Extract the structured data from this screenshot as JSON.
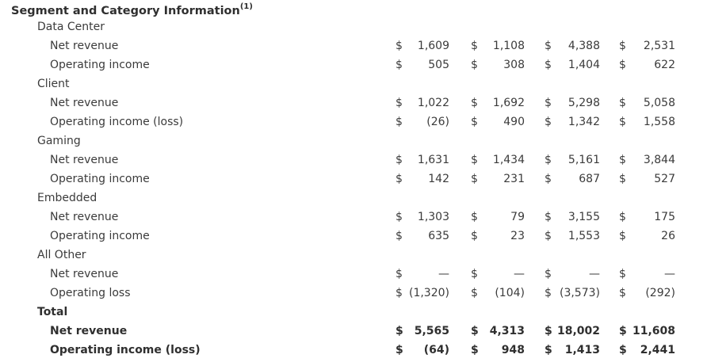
{
  "title": "Segment and Category Information",
  "title_footnote": "(1)",
  "currency": "$",
  "segments": [
    {
      "name": "Data Center",
      "rows": [
        {
          "label": "Net revenue",
          "values": [
            "1,609",
            "1,108",
            "4,388",
            "2,531"
          ]
        },
        {
          "label": "Operating income",
          "values": [
            "505",
            "308",
            "1,404",
            "622"
          ]
        }
      ]
    },
    {
      "name": "Client",
      "rows": [
        {
          "label": "Net revenue",
          "values": [
            "1,022",
            "1,692",
            "5,298",
            "5,058"
          ]
        },
        {
          "label": "Operating income (loss)",
          "values": [
            "(26)",
            "490",
            "1,342",
            "1,558"
          ]
        }
      ]
    },
    {
      "name": "Gaming",
      "rows": [
        {
          "label": "Net revenue",
          "values": [
            "1,631",
            "1,434",
            "5,161",
            "3,844"
          ]
        },
        {
          "label": "Operating income",
          "values": [
            "142",
            "231",
            "687",
            "527"
          ]
        }
      ]
    },
    {
      "name": "Embedded",
      "rows": [
        {
          "label": "Net revenue",
          "values": [
            "1,303",
            "79",
            "3,155",
            "175"
          ]
        },
        {
          "label": "Operating income",
          "values": [
            "635",
            "23",
            "1,553",
            "26"
          ]
        }
      ]
    },
    {
      "name": "All Other",
      "rows": [
        {
          "label": "Net revenue",
          "values": [
            "—",
            "—",
            "—",
            "—"
          ]
        },
        {
          "label": "Operating loss",
          "values": [
            "(1,320)",
            "(104)",
            "(3,573)",
            "(292)"
          ]
        }
      ]
    }
  ],
  "total": {
    "name": "Total",
    "rows": [
      {
        "label": "Net revenue",
        "values": [
          "5,565",
          "4,313",
          "18,002",
          "11,608"
        ]
      },
      {
        "label": "Operating income (loss)",
        "values": [
          "(64)",
          "948",
          "1,413",
          "2,441"
        ]
      }
    ]
  }
}
